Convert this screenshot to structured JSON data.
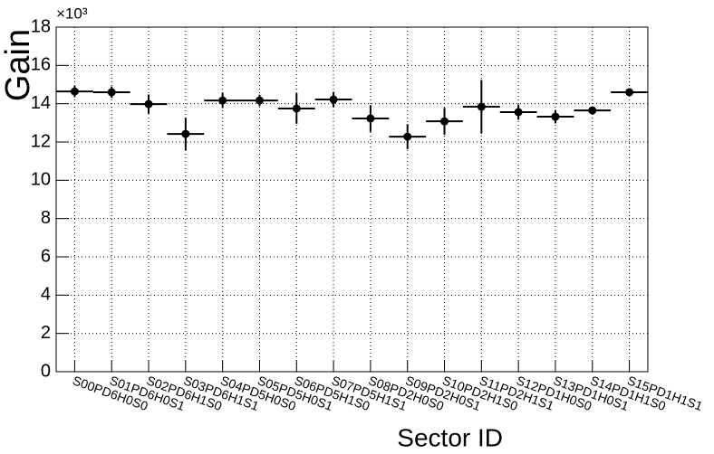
{
  "chart_data": {
    "type": "errorbar",
    "x_label": "Sector ID",
    "y_label": "Gain",
    "y_multiplier": "×10³",
    "categories": [
      "S00PD6H0S0",
      "S01PD6H0S1",
      "S02PD6H1S0",
      "S03PD6H1S1",
      "S04PD5H0S0",
      "S05PD5H0S1",
      "S06PD5H1S0",
      "S07PD5H1S1",
      "S08PD2H0S0",
      "S09PD2H0S1",
      "S10PD2H1S0",
      "S11PD2H1S1",
      "S12PD1H0S0",
      "S13PD1H0S1",
      "S14PD1H1S0",
      "S15PD1H1S1"
    ],
    "values": [
      14.64,
      14.6,
      13.98,
      12.42,
      14.17,
      14.17,
      13.75,
      14.22,
      13.23,
      12.28,
      13.08,
      13.84,
      13.56,
      13.32,
      13.65,
      14.6
    ],
    "errors": [
      0.3,
      0.3,
      0.5,
      0.85,
      0.4,
      0.3,
      0.8,
      0.4,
      0.7,
      0.65,
      0.7,
      1.4,
      0.4,
      0.35,
      0.2,
      0.2
    ],
    "color": "#000000",
    "ylim": [
      0,
      18
    ],
    "yticks": [
      0,
      2,
      4,
      6,
      8,
      10,
      12,
      14,
      16,
      18
    ],
    "grid": true
  }
}
